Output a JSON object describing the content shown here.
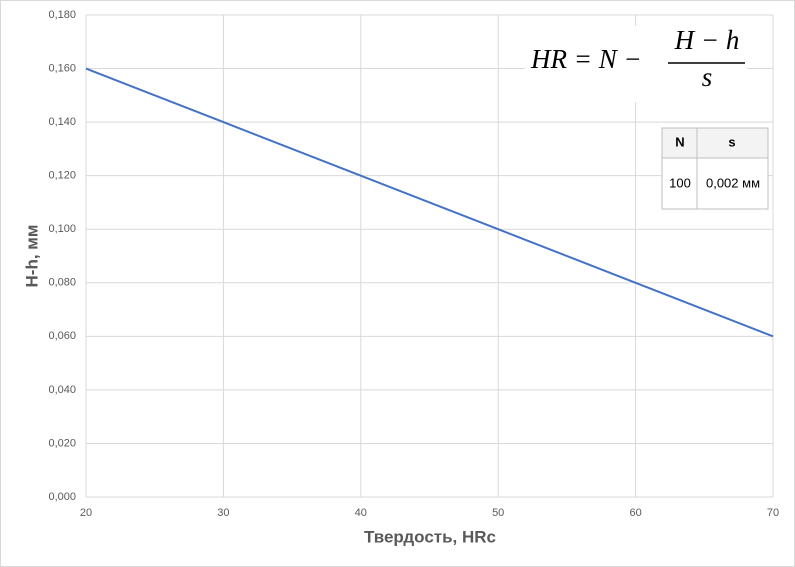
{
  "chart_data": {
    "type": "line",
    "x_label": "Твердость,  HRc",
    "y_label": "H-h, мм",
    "x": [
      20,
      30,
      40,
      50,
      60,
      70
    ],
    "series": [
      {
        "name": "H-h",
        "color": "#4472c4",
        "values": [
          0.16,
          0.14,
          0.12,
          0.1,
          0.08,
          0.06
        ]
      }
    ],
    "xlim": [
      20,
      70
    ],
    "xticks": [
      20,
      30,
      40,
      50,
      60,
      70
    ],
    "ylim": [
      0,
      0.18
    ],
    "yticks": [
      {
        "value": 0,
        "label": "0,000"
      },
      {
        "value": 0.02,
        "label": "0,020"
      },
      {
        "value": 0.04,
        "label": "0,040"
      },
      {
        "value": 0.06,
        "label": "0,060"
      },
      {
        "value": 0.08,
        "label": "0,080"
      },
      {
        "value": 0.1,
        "label": "0,100"
      },
      {
        "value": 0.12,
        "label": "0,120"
      },
      {
        "value": 0.14,
        "label": "0,140"
      },
      {
        "value": 0.16,
        "label": "0,160"
      },
      {
        "value": 0.18,
        "label": "0,180"
      }
    ],
    "grid": true,
    "formula": {
      "left": "HR = N −",
      "numerator": "H − h",
      "denominator": "s"
    },
    "table": {
      "header": [
        "N",
        "s"
      ],
      "rows": [
        [
          100,
          "0,002 мм"
        ]
      ]
    }
  }
}
